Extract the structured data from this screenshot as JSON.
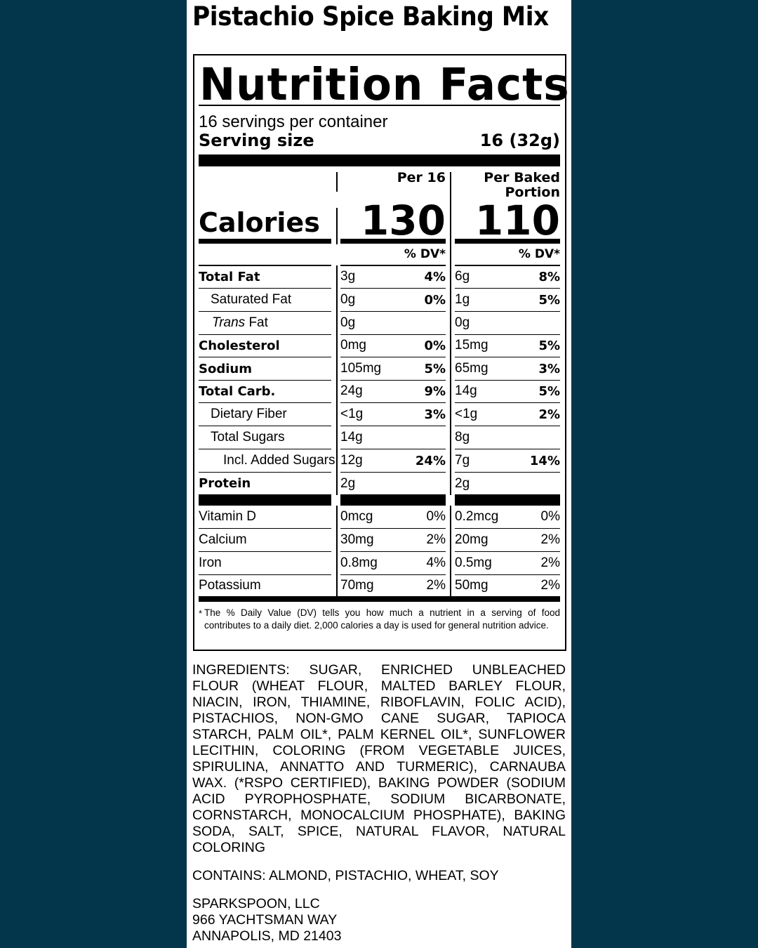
{
  "product_title": "Pistachio Spice Baking Mix",
  "label": {
    "heading": "Nutrition Facts",
    "servings_per_container": "16 servings per container",
    "serving_size_label": "Serving size",
    "serving_size_value": "16 (32g)",
    "col1_header": "Per 16",
    "col2_header_line1": "Per Baked",
    "col2_header_line2": "Portion",
    "calories_label": "Calories",
    "calories_col1": "130",
    "calories_col2": "110",
    "dv_header": "% DV*",
    "nutrients": [
      {
        "name": "Total Fat",
        "style": "bold",
        "a1": "3g",
        "d1": "4%",
        "a2": "6g",
        "d2": "8%"
      },
      {
        "name": "Saturated Fat",
        "style": "indent",
        "a1": "0g",
        "d1": "0%",
        "a2": "1g",
        "d2": "5%"
      },
      {
        "name": "Trans Fat",
        "style": "indent-italic",
        "a1": "0g",
        "d1": "",
        "a2": "0g",
        "d2": ""
      },
      {
        "name": "Cholesterol",
        "style": "bold",
        "a1": "0mg",
        "d1": "0%",
        "a2": "15mg",
        "d2": "5%"
      },
      {
        "name": "Sodium",
        "style": "bold",
        "a1": "105mg",
        "d1": "5%",
        "a2": "65mg",
        "d2": "3%"
      },
      {
        "name": "Total Carb.",
        "style": "bold",
        "a1": "24g",
        "d1": "9%",
        "a2": "14g",
        "d2": "5%"
      },
      {
        "name": "Dietary Fiber",
        "style": "indent",
        "a1": "<1g",
        "d1": "3%",
        "a2": "<1g",
        "d2": "2%"
      },
      {
        "name": "Total Sugars",
        "style": "indent",
        "a1": "14g",
        "d1": "",
        "a2": "8g",
        "d2": ""
      },
      {
        "name": "Incl. Added Sugars",
        "style": "indent2",
        "a1": "12g",
        "d1": "24%",
        "a2": "7g",
        "d2": "14%"
      },
      {
        "name": "Protein",
        "style": "bold",
        "a1": "2g",
        "d1": "",
        "a2": "2g",
        "d2": ""
      }
    ],
    "vitamins": [
      {
        "name": "Vitamin D",
        "a1": "0mcg",
        "d1": "0%",
        "a2": "0.2mcg",
        "d2": "0%"
      },
      {
        "name": "Calcium",
        "a1": "30mg",
        "d1": "2%",
        "a2": "20mg",
        "d2": "2%"
      },
      {
        "name": "Iron",
        "a1": "0.8mg",
        "d1": "4%",
        "a2": "0.5mg",
        "d2": "2%"
      },
      {
        "name": "Potassium",
        "a1": "70mg",
        "d1": "2%",
        "a2": "50mg",
        "d2": "2%"
      }
    ],
    "footnote": "The % Daily Value (DV) tells you how much a nutrient in a serving of food contributes to a daily diet. 2,000 calories a day is used for general nutrition advice."
  },
  "ingredients": "INGREDIENTS: SUGAR, ENRICHED UNBLEACHED FLOUR (WHEAT FLOUR, MALTED BARLEY FLOUR, NIACIN, IRON, THIAMINE, RIBOFLAVIN, FOLIC ACID), PISTACHIOS, NON-GMO CANE SUGAR, TAPIOCA STARCH, PALM OIL*, PALM KERNEL OIL*, SUNFLOWER LECITHIN, COLORING (FROM VEGETABLE JUICES, SPIRULINA, ANNATTO AND TURMERIC), CARNAUBA WAX. (*RSPO CERTIFIED), BAKING POWDER (SODIUM ACID PYROPHOSPHATE, SODIUM BICARBONATE, CORNSTARCH, MONOCALCIUM PHOSPHATE), BAKING SODA, SALT, SPICE, NATURAL FLAVOR, NATURAL COLORING",
  "contains": "CONTAINS: ALMOND, PISTACHIO, WHEAT, SOY",
  "company": {
    "name": "SPARKSPOON, LLC",
    "street": "966 YACHTSMAN WAY",
    "city": "ANNAPOLIS, MD 21403"
  }
}
